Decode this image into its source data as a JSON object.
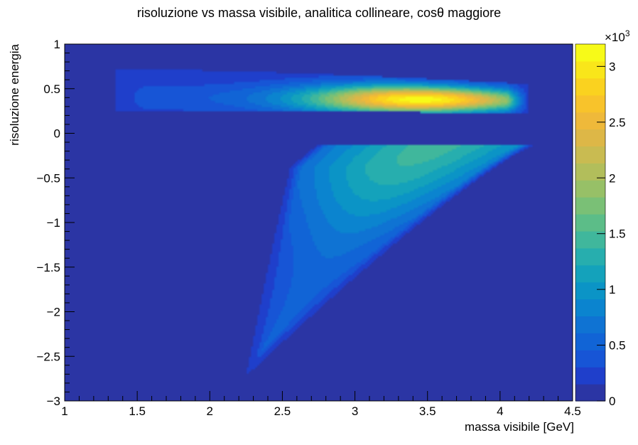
{
  "chart_data": {
    "type": "heatmap",
    "title": "risoluzione vs massa visibile,  analitica collineare, cosθ maggiore",
    "xlabel": "massa visibile [GeV]",
    "ylabel": "risoluzione energia",
    "xlim": [
      1,
      4.5
    ],
    "ylim": [
      -3,
      1
    ],
    "x_ticks": [
      "1",
      "1.5",
      "2",
      "2.5",
      "3",
      "3.5",
      "4",
      "4.5"
    ],
    "y_ticks": [
      "1",
      "0.5",
      "0",
      "−0.5",
      "−1",
      "−1.5",
      "−2",
      "−2.5",
      "−3"
    ],
    "z_ticks": [
      "0",
      "0.5",
      "1",
      "1.5",
      "2",
      "2.5",
      "3"
    ],
    "z_exponent": "×10",
    "z_exponent_power": "3",
    "zlim": [
      0,
      3200
    ],
    "grid": false,
    "colorbar": "right",
    "background_color": "#2c3aa6",
    "palette": [
      "#2b35a4",
      "#1f3fcb",
      "#1755d6",
      "#1164d6",
      "#0f73d3",
      "#0b84cf",
      "#0b94c6",
      "#14a2bb",
      "#27aeae",
      "#40b79c",
      "#5cbd88",
      "#7ac076",
      "#97c067",
      "#b2be5b",
      "#c9bb51",
      "#ddb747",
      "#efb93a",
      "#f8c32b",
      "#fad21f",
      "#f9e61a",
      "#f7fa18"
    ],
    "regions": [
      {
        "name": "upper band",
        "x_range": [
          1.35,
          4.2
        ],
        "y_range": [
          0.25,
          0.72
        ],
        "peak": {
          "x": 3.5,
          "y": 0.38,
          "z": 3150
        }
      },
      {
        "name": "lower lobe",
        "x_range": [
          2.25,
          4.25
        ],
        "y_range": [
          -2.7,
          -0.12
        ],
        "peak": {
          "x": 3.7,
          "y": -0.25,
          "z": 1350
        }
      }
    ]
  }
}
